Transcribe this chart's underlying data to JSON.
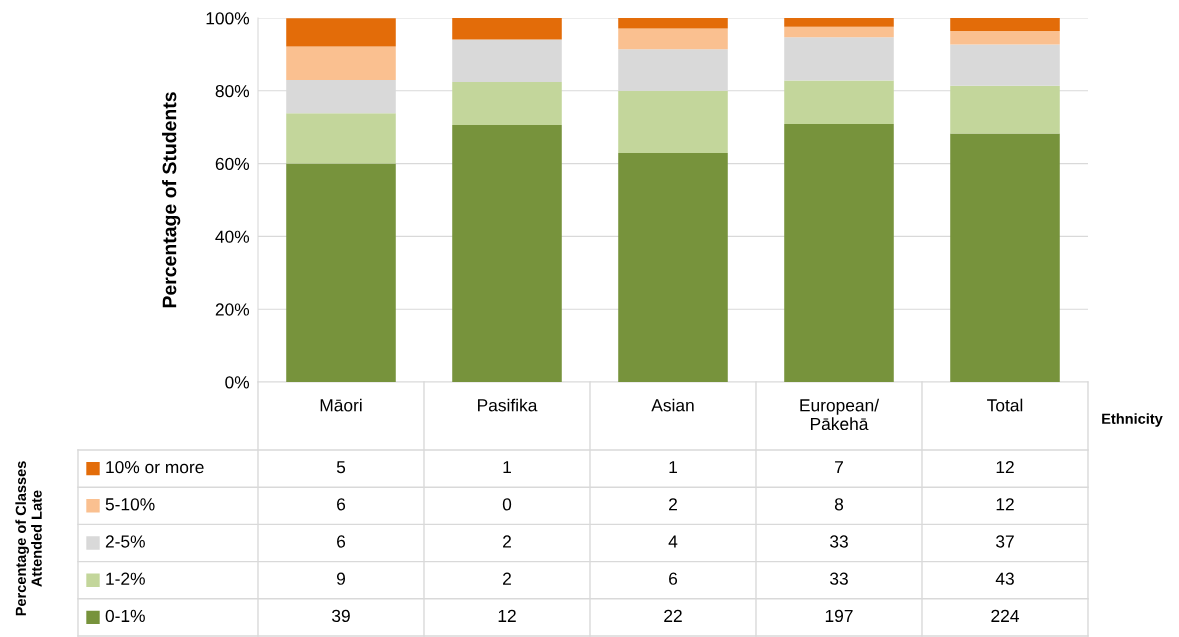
{
  "chart_data": {
    "type": "bar",
    "stacked": true,
    "categories": [
      "Māori",
      "Pasifika",
      "Asian",
      "European/\nPākehā",
      "Total"
    ],
    "ylabel": "Percentage of Students",
    "xlabel": "Ethnicity",
    "legend_title": "Percentage of Classes Attended Late",
    "ylim": [
      0,
      100
    ],
    "yticks": [
      {
        "value": 0,
        "label": "0%"
      },
      {
        "value": 20,
        "label": "20%"
      },
      {
        "value": 40,
        "label": "40%"
      },
      {
        "value": 60,
        "label": "60%"
      },
      {
        "value": 80,
        "label": "80%"
      },
      {
        "value": 100,
        "label": "100%"
      }
    ],
    "grid": "y",
    "legend": "bottom",
    "series": [
      {
        "name": "0-1%",
        "color": "#77933c",
        "values": [
          60.0,
          70.6,
          62.9,
          70.9,
          68.3
        ]
      },
      {
        "name": "1-2%",
        "color": "#c3d69b",
        "values": [
          13.8,
          11.8,
          17.1,
          11.9,
          13.1
        ]
      },
      {
        "name": "2-5%",
        "color": "#d9d9d9",
        "values": [
          9.2,
          11.7,
          11.4,
          11.9,
          11.3
        ]
      },
      {
        "name": "5-10%",
        "color": "#fac090",
        "values": [
          9.2,
          0,
          5.7,
          2.9,
          3.7
        ]
      },
      {
        "name": "10% or more",
        "color": "#e36c09",
        "values": [
          7.7,
          5.9,
          2.9,
          2.4,
          3.6
        ]
      }
    ],
    "annotations": [
      "5",
      "1",
      "1",
      "7",
      "12",
      "6",
      "0",
      "2",
      "8",
      "12",
      "6",
      "2",
      "4",
      "33",
      "37",
      "9",
      "2",
      "6",
      "33",
      "43",
      "39",
      "12",
      "22",
      "197",
      "224"
    ]
  }
}
